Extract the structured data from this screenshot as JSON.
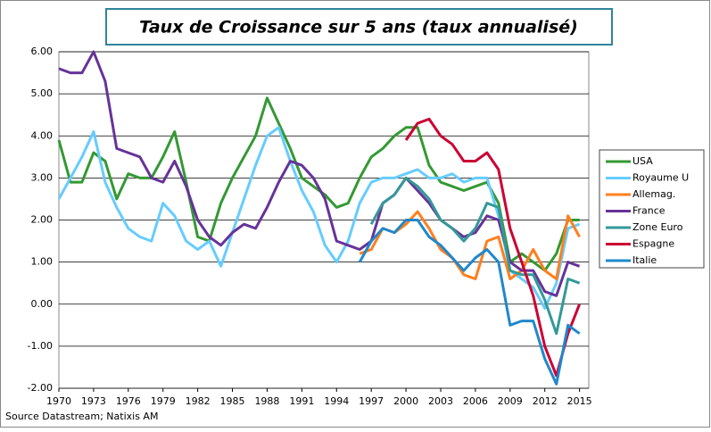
{
  "chart_data": {
    "type": "line",
    "title": "Taux de Croissance sur 5 ans (taux annualisé)",
    "source": "Source Datastream; Natixis AM",
    "x": [
      1970,
      1971,
      1972,
      1973,
      1974,
      1975,
      1976,
      1977,
      1978,
      1979,
      1980,
      1981,
      1982,
      1983,
      1984,
      1985,
      1986,
      1987,
      1988,
      1989,
      1990,
      1991,
      1992,
      1993,
      1994,
      1995,
      1996,
      1997,
      1998,
      1999,
      2000,
      2001,
      2002,
      2003,
      2004,
      2005,
      2006,
      2007,
      2008,
      2009,
      2010,
      2011,
      2012,
      2013,
      2014,
      2015
    ],
    "xlim": [
      1970,
      2015.8
    ],
    "xticks": [
      1970,
      1973,
      1976,
      1979,
      1982,
      1985,
      1988,
      1991,
      1994,
      1997,
      2000,
      2003,
      2006,
      2009,
      2012,
      2015
    ],
    "ylim": [
      -2,
      6
    ],
    "yticks": [
      {
        "value": 6,
        "label": "6.00"
      },
      {
        "value": 5,
        "label": "5.00"
      },
      {
        "value": 4,
        "label": "4.00"
      },
      {
        "value": 3,
        "label": "3.00"
      },
      {
        "value": 2,
        "label": "2.00"
      },
      {
        "value": 1,
        "label": "1.00"
      },
      {
        "value": 0,
        "label": "0.00"
      },
      {
        "value": -1,
        "label": "-1.00"
      },
      {
        "value": -2,
        "label": "-2.00"
      }
    ],
    "grid": true,
    "legend": "right",
    "series": [
      {
        "name": "USA",
        "color": "#339933",
        "values": [
          3.9,
          2.9,
          2.9,
          3.6,
          3.4,
          2.5,
          3.1,
          3.0,
          3.0,
          3.5,
          4.1,
          2.9,
          1.6,
          1.5,
          2.4,
          3.0,
          3.5,
          4.0,
          4.9,
          4.3,
          3.7,
          3.0,
          2.8,
          2.6,
          2.3,
          2.4,
          3.0,
          3.5,
          3.7,
          4.0,
          4.2,
          4.2,
          3.3,
          2.9,
          2.8,
          2.7,
          2.8,
          2.9,
          2.4,
          1.0,
          1.2,
          1.0,
          0.8,
          1.2,
          2.0,
          2.0
        ]
      },
      {
        "name": "Royaume U",
        "color": "#66ccff",
        "values": [
          2.5,
          3.0,
          3.5,
          4.1,
          2.9,
          2.3,
          1.8,
          1.6,
          1.5,
          2.4,
          2.1,
          1.5,
          1.3,
          1.5,
          0.9,
          1.7,
          2.5,
          3.3,
          4.0,
          4.2,
          3.4,
          2.7,
          2.2,
          1.4,
          1.0,
          1.5,
          2.4,
          2.9,
          3.0,
          3.0,
          3.1,
          3.2,
          3.0,
          3.0,
          3.1,
          2.9,
          3.0,
          3.0,
          2.1,
          0.8,
          0.6,
          0.4,
          -0.1,
          0.5,
          1.8,
          1.9
        ]
      },
      {
        "name": "Allemag.",
        "color": "#ff7f1e",
        "values": [
          null,
          null,
          null,
          null,
          null,
          null,
          null,
          null,
          null,
          null,
          null,
          null,
          null,
          null,
          null,
          null,
          null,
          null,
          null,
          null,
          null,
          null,
          null,
          null,
          null,
          null,
          1.2,
          1.3,
          1.8,
          1.7,
          1.9,
          2.2,
          1.8,
          1.3,
          1.1,
          0.7,
          0.6,
          1.5,
          1.6,
          0.6,
          0.8,
          1.3,
          0.8,
          0.6,
          2.1,
          1.6
        ]
      },
      {
        "name": "France",
        "color": "#663399",
        "values": [
          5.6,
          5.5,
          5.5,
          6.0,
          5.3,
          3.7,
          3.6,
          3.5,
          3.0,
          2.9,
          3.4,
          2.8,
          2.0,
          1.6,
          1.4,
          1.7,
          1.9,
          1.8,
          2.3,
          2.9,
          3.4,
          3.3,
          3.0,
          2.5,
          1.5,
          1.4,
          1.3,
          1.5,
          2.4,
          2.6,
          3.0,
          2.7,
          2.4,
          2.0,
          1.8,
          1.6,
          1.7,
          2.1,
          2.0,
          1.0,
          0.8,
          0.8,
          0.3,
          0.2,
          1.0,
          0.9
        ]
      },
      {
        "name": "Zone Euro",
        "color": "#339999",
        "values": [
          null,
          null,
          null,
          null,
          null,
          null,
          null,
          null,
          null,
          null,
          null,
          null,
          null,
          null,
          null,
          null,
          null,
          null,
          null,
          null,
          null,
          null,
          null,
          null,
          null,
          null,
          null,
          1.9,
          2.4,
          2.6,
          3.0,
          2.8,
          2.5,
          2.0,
          1.8,
          1.5,
          1.8,
          2.4,
          2.3,
          0.8,
          0.7,
          0.7,
          0.1,
          -0.7,
          0.6,
          0.5
        ]
      },
      {
        "name": "Espagne",
        "color": "#cc0033",
        "values": [
          null,
          null,
          null,
          null,
          null,
          null,
          null,
          null,
          null,
          null,
          null,
          null,
          null,
          null,
          null,
          null,
          null,
          null,
          null,
          null,
          null,
          null,
          null,
          null,
          null,
          null,
          null,
          null,
          null,
          null,
          3.9,
          4.3,
          4.4,
          4.0,
          3.8,
          3.4,
          3.4,
          3.6,
          3.2,
          1.8,
          1.0,
          0.2,
          -1.0,
          -1.7,
          -0.7,
          0.0
        ]
      },
      {
        "name": "Italie",
        "color": "#1f88cc",
        "values": [
          null,
          null,
          null,
          null,
          null,
          null,
          null,
          null,
          null,
          null,
          null,
          null,
          null,
          null,
          null,
          null,
          null,
          null,
          null,
          null,
          null,
          null,
          null,
          null,
          null,
          null,
          1.0,
          1.5,
          1.8,
          1.7,
          2.0,
          2.0,
          1.6,
          1.4,
          1.1,
          0.8,
          1.1,
          1.3,
          1.0,
          -0.5,
          -0.4,
          -0.4,
          -1.3,
          -1.9,
          -0.5,
          -0.7
        ]
      }
    ]
  }
}
